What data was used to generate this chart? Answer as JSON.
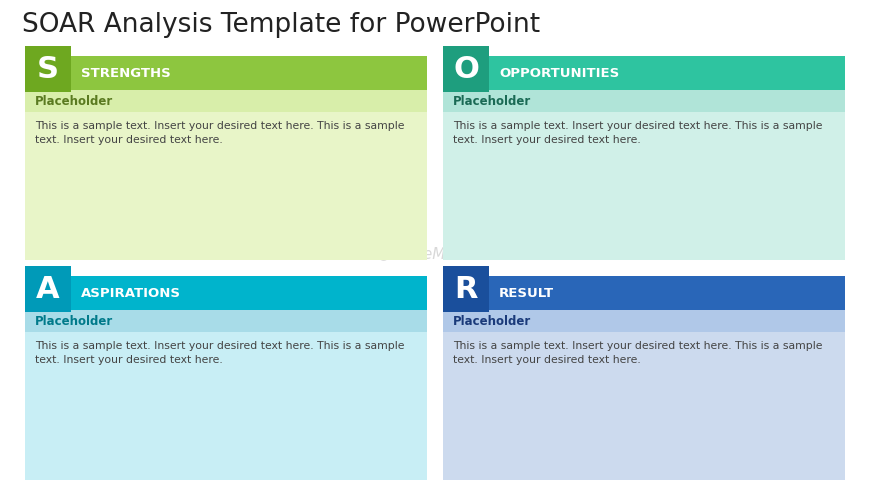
{
  "title": "SOAR Analysis Template for PowerPoint",
  "title_color": "#222222",
  "title_fontsize": 19,
  "background_color": "#ffffff",
  "quadrants": [
    {
      "letter": "S",
      "letter_bg": "#6ea820",
      "header_text": "STRENGTHS",
      "header_bg": "#8dc63f",
      "placeholder_color": "#5a7a20",
      "placeholder_bg": "#d8eeaa",
      "body_bg": "#e8f5c8",
      "body_text": "This is a sample text. Insert your desired text here. This is a sample\ntext. Insert your desired text here.",
      "col": 0,
      "row": 0
    },
    {
      "letter": "O",
      "letter_bg": "#1e9e7e",
      "header_text": "OPPORTUNITIES",
      "header_bg": "#2ec4a0",
      "placeholder_color": "#1a6a55",
      "placeholder_bg": "#b0e4d8",
      "body_bg": "#d0f0e8",
      "body_text": "This is a sample text. Insert your desired text here. This is a sample\ntext. Insert your desired text here.",
      "col": 1,
      "row": 0
    },
    {
      "letter": "A",
      "letter_bg": "#009ab8",
      "header_text": "ASPIRATIONS",
      "header_bg": "#00b4cc",
      "placeholder_color": "#007a8a",
      "placeholder_bg": "#a8dce8",
      "body_bg": "#c8eef5",
      "body_text": "This is a sample text. Insert your desired text here. This is a sample\ntext. Insert your desired text here.",
      "col": 0,
      "row": 1
    },
    {
      "letter": "R",
      "letter_bg": "#1a4f9c",
      "header_text": "RESULT",
      "header_bg": "#2966b8",
      "placeholder_color": "#1a3a7a",
      "placeholder_bg": "#b0c8e8",
      "body_bg": "#ccdaee",
      "body_text": "This is a sample text. Insert your desired text here. This is a sample\ntext. Insert your desired text here.",
      "col": 1,
      "row": 1
    }
  ]
}
